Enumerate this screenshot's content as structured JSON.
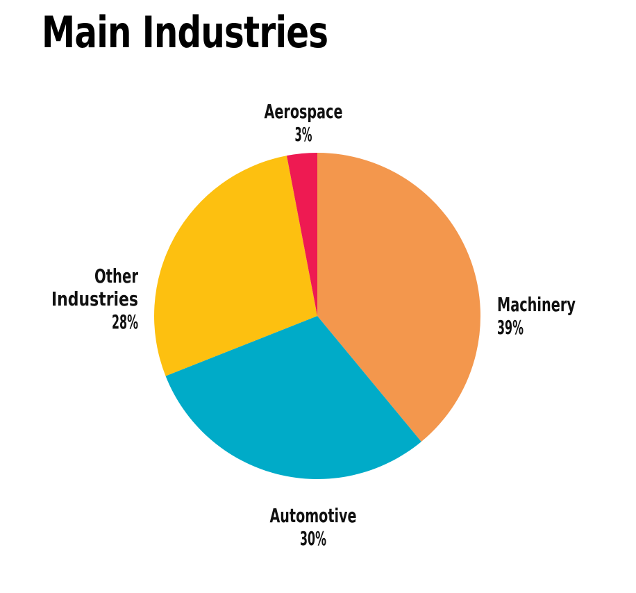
{
  "chart_data": {
    "type": "pie",
    "title": "Main Industries",
    "slices": [
      {
        "label": "Machinery",
        "value": 39,
        "value_label": "39%",
        "color": "#F3974D"
      },
      {
        "label": "Automotive",
        "value": 30,
        "value_label": "30%",
        "color": "#00ABC8"
      },
      {
        "label": "Other Industries",
        "value": 28,
        "value_label": "28%",
        "color": "#FDC010"
      },
      {
        "label": "Aerospace",
        "value": 3,
        "value_label": "3%",
        "color": "#EE1A52"
      }
    ],
    "start_angle": "12 o'clock",
    "direction": "clockwise"
  }
}
